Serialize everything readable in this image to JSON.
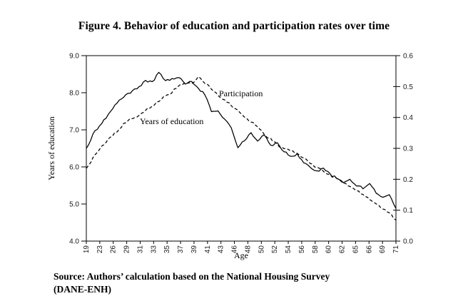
{
  "figure": {
    "title": "Figure 4. Behavior of education and participation rates over time"
  },
  "source_note": {
    "line1": "Source: Authors’ calculation based on the National Housing Survey",
    "line2": "(DANE-ENH)"
  },
  "colors": {
    "background": "#ffffff",
    "line": "#000000",
    "text": "#000000"
  },
  "chart_data": {
    "type": "line",
    "title": "Figure 4. Behavior of education and participation rates over time",
    "grid": false,
    "legend": "inline-annotations",
    "x_axis": {
      "label": "Age",
      "tick_labels": [
        "19",
        "23",
        "26",
        "29",
        "31",
        "33",
        "35",
        "37",
        "39",
        "41",
        "43",
        "46",
        "48",
        "50",
        "52",
        "54",
        "56",
        "58",
        "60",
        "62",
        "65",
        "66",
        "69",
        "71"
      ]
    },
    "y_left": {
      "label": "Years of education",
      "tick_labels": [
        "9.0",
        "8.0",
        "7.0",
        "6.0",
        "5.0",
        "4.0"
      ],
      "range": [
        4.0,
        9.0
      ]
    },
    "y_right": {
      "label": "",
      "tick_labels": [
        "0.6",
        "0.5",
        "0.4",
        "0.3",
        "0.2",
        "0.1",
        "0.0"
      ],
      "range": [
        0.0,
        0.6
      ]
    },
    "series": [
      {
        "name": "years-of-education",
        "label_text": "Years of education",
        "axis": "left",
        "style": "solid",
        "values": [
          6.5,
          6.88,
          7.12,
          7.32,
          7.58,
          7.8,
          7.95,
          8.05,
          8.15,
          8.32,
          8.28,
          8.56,
          8.32,
          8.38,
          8.42,
          8.25,
          8.3,
          8.12,
          7.95,
          7.5,
          7.52,
          7.28,
          7.05,
          6.5,
          6.72,
          6.92,
          6.7,
          6.85,
          6.58,
          6.65,
          6.42,
          6.28,
          6.35,
          6.12,
          5.98,
          5.88,
          5.95,
          5.8,
          5.7,
          5.58,
          5.65,
          5.5,
          5.42,
          5.55,
          5.3,
          5.18,
          5.25,
          4.88
        ]
      },
      {
        "name": "participation",
        "label_text": "Participation",
        "axis": "right",
        "style": "dashed",
        "values": [
          0.235,
          0.268,
          0.298,
          0.32,
          0.342,
          0.362,
          0.385,
          0.398,
          0.408,
          0.425,
          0.438,
          0.452,
          0.468,
          0.482,
          0.5,
          0.515,
          0.508,
          0.53,
          0.512,
          0.49,
          0.472,
          0.455,
          0.438,
          0.425,
          0.4,
          0.385,
          0.37,
          0.345,
          0.33,
          0.31,
          0.298,
          0.292,
          0.282,
          0.268,
          0.252,
          0.238,
          0.228,
          0.213,
          0.202,
          0.188,
          0.175,
          0.163,
          0.15,
          0.135,
          0.12,
          0.105,
          0.092,
          0.068
        ]
      }
    ]
  }
}
